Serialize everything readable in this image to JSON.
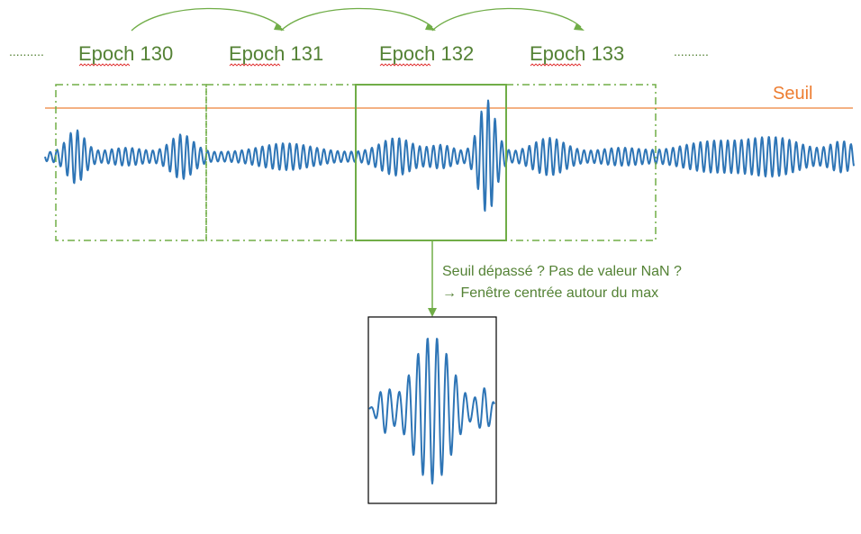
{
  "epochs": [
    {
      "label": "Epoch 130"
    },
    {
      "label": "Epoch 131"
    },
    {
      "label": "Epoch 132"
    },
    {
      "label": "Epoch 133"
    }
  ],
  "ellipsis_left": "..........",
  "ellipsis_right": "..........",
  "threshold": {
    "label": "Seuil"
  },
  "note": {
    "line1": "Seuil dépassé ? Pas de valeur NaN ?",
    "line2": "→  Fenêtre centrée autour du max"
  },
  "colors": {
    "signal": "#2e75b6",
    "threshold": "#f4b183",
    "threshold_text": "#ed7d31",
    "green": "#70ad47",
    "green_text": "#548235",
    "box": "#000000"
  }
}
